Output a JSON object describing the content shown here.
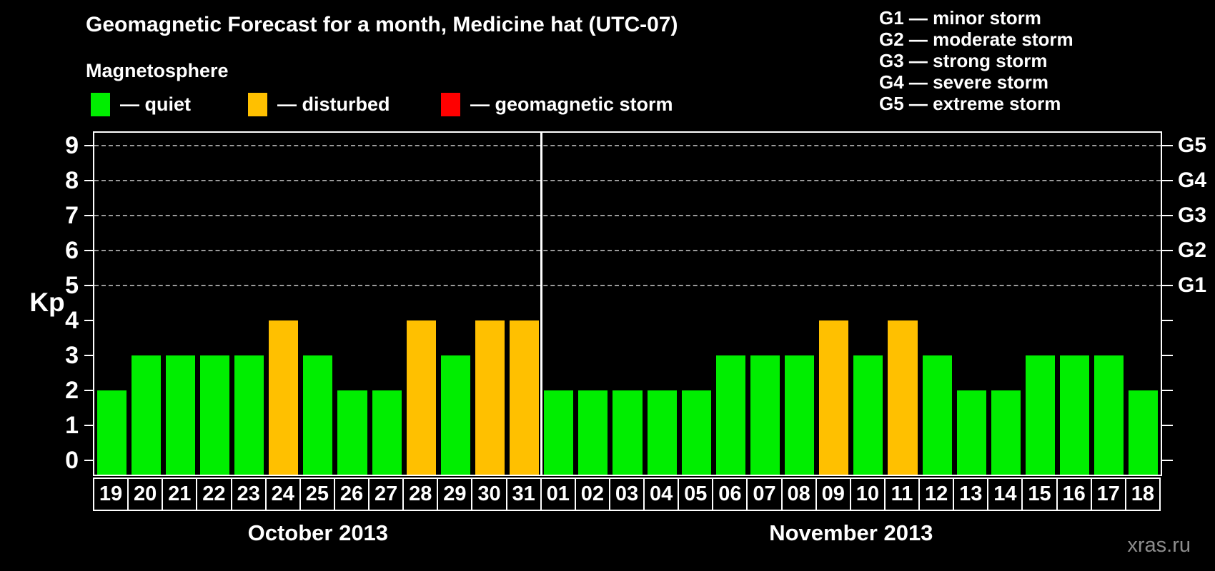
{
  "header": {
    "title": "Geomagnetic Forecast for a month, Medicine hat (UTC-07)",
    "subtitle": "Magnetosphere"
  },
  "status_legend": [
    {
      "label": "— quiet",
      "status": "quiet",
      "color": "#00ee00"
    },
    {
      "label": "— disturbed",
      "status": "disturbed",
      "color": "#ffc000"
    },
    {
      "label": "— geomagnetic storm",
      "status": "storm",
      "color": "#ff0000"
    }
  ],
  "g_legend": [
    "G1 — minor storm",
    "G2 — moderate storm",
    "G3 — strong storm",
    "G4 — severe storm",
    "G5 — extreme storm"
  ],
  "watermark": "xras.ru",
  "chart_data": {
    "type": "bar",
    "title": "Geomagnetic Forecast for a month, Medicine hat (UTC-07)",
    "ylabel": "Kp",
    "ylim": [
      0,
      9
    ],
    "y_ticks": [
      0,
      1,
      2,
      3,
      4,
      5,
      6,
      7,
      8,
      9
    ],
    "grid_values": [
      5,
      6,
      7,
      8,
      9
    ],
    "grid_style": "dashed",
    "right_axis": {
      "ticks": [
        0,
        1,
        2,
        3,
        4,
        5,
        6,
        7,
        8,
        9
      ],
      "labels": [
        {
          "value": 5,
          "label": "G1"
        },
        {
          "value": 6,
          "label": "G2"
        },
        {
          "value": 7,
          "label": "G3"
        },
        {
          "value": 8,
          "label": "G4"
        },
        {
          "value": 9,
          "label": "G5"
        }
      ]
    },
    "status_colors": {
      "quiet": "#00ee00",
      "disturbed": "#ffc000",
      "storm": "#ff0000"
    },
    "panels": [
      {
        "month_label": "October 2013",
        "days": [
          "19",
          "20",
          "21",
          "22",
          "23",
          "24",
          "25",
          "26",
          "27",
          "28",
          "29",
          "30",
          "31"
        ],
        "kp": [
          2,
          3,
          3,
          3,
          3,
          4,
          3,
          2,
          2,
          4,
          3,
          4,
          4
        ],
        "status": [
          "quiet",
          "quiet",
          "quiet",
          "quiet",
          "quiet",
          "disturbed",
          "quiet",
          "quiet",
          "quiet",
          "disturbed",
          "quiet",
          "disturbed",
          "disturbed"
        ]
      },
      {
        "month_label": "November 2013",
        "days": [
          "01",
          "02",
          "03",
          "04",
          "05",
          "06",
          "07",
          "08",
          "09",
          "10",
          "11",
          "12",
          "13",
          "14",
          "15",
          "16",
          "17",
          "18"
        ],
        "kp": [
          2,
          2,
          2,
          2,
          2,
          3,
          3,
          3,
          4,
          3,
          4,
          3,
          2,
          2,
          3,
          3,
          3,
          2
        ],
        "status": [
          "quiet",
          "quiet",
          "quiet",
          "quiet",
          "quiet",
          "quiet",
          "quiet",
          "quiet",
          "disturbed",
          "quiet",
          "disturbed",
          "quiet",
          "quiet",
          "quiet",
          "quiet",
          "quiet",
          "quiet",
          "quiet"
        ]
      }
    ]
  }
}
